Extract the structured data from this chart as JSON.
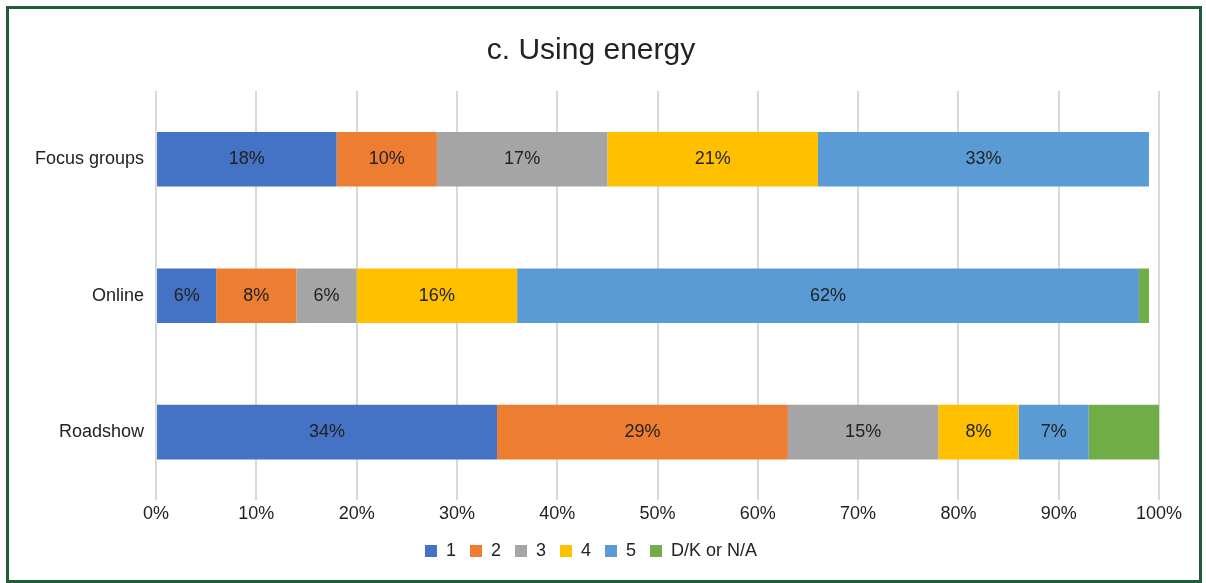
{
  "chart_data": {
    "type": "bar",
    "title": "c. Using energy",
    "orientation": "horizontal",
    "stacked": true,
    "categories": [
      "Focus groups",
      "Online",
      "Roadshow"
    ],
    "series": [
      {
        "name": "1",
        "color": "#4472c4",
        "values": [
          18,
          6,
          34
        ],
        "value_labels": [
          "18%",
          "6%",
          "34%"
        ]
      },
      {
        "name": "2",
        "color": "#ed7d31",
        "values": [
          10,
          8,
          29
        ],
        "value_labels": [
          "10%",
          "8%",
          "29%"
        ]
      },
      {
        "name": "3",
        "color": "#a5a5a5",
        "values": [
          17,
          6,
          15
        ],
        "value_labels": [
          "17%",
          "6%",
          "15%"
        ]
      },
      {
        "name": "4",
        "color": "#ffc000",
        "values": [
          21,
          16,
          8
        ],
        "value_labels": [
          "21%",
          "16%",
          "8%"
        ]
      },
      {
        "name": "5",
        "color": "#5b9bd5",
        "values": [
          33,
          62,
          7
        ],
        "value_labels": [
          "33%",
          "62%",
          "7%"
        ]
      },
      {
        "name": "D/K or N/A",
        "color": "#70ad47",
        "values": [
          null,
          1,
          7
        ],
        "value_labels": [
          null,
          null,
          null
        ]
      }
    ],
    "xlim": [
      0,
      100
    ],
    "xticks": [
      {
        "value": 0,
        "label": "0%"
      },
      {
        "value": 10,
        "label": "10%"
      },
      {
        "value": 20,
        "label": "20%"
      },
      {
        "value": 30,
        "label": "30%"
      },
      {
        "value": 40,
        "label": "40%"
      },
      {
        "value": 50,
        "label": "50%"
      },
      {
        "value": 60,
        "label": "60%"
      },
      {
        "value": 70,
        "label": "70%"
      },
      {
        "value": 80,
        "label": "80%"
      },
      {
        "value": 90,
        "label": "90%"
      },
      {
        "value": 100,
        "label": "100%"
      }
    ],
    "grid": "x",
    "legend": "bottom"
  }
}
